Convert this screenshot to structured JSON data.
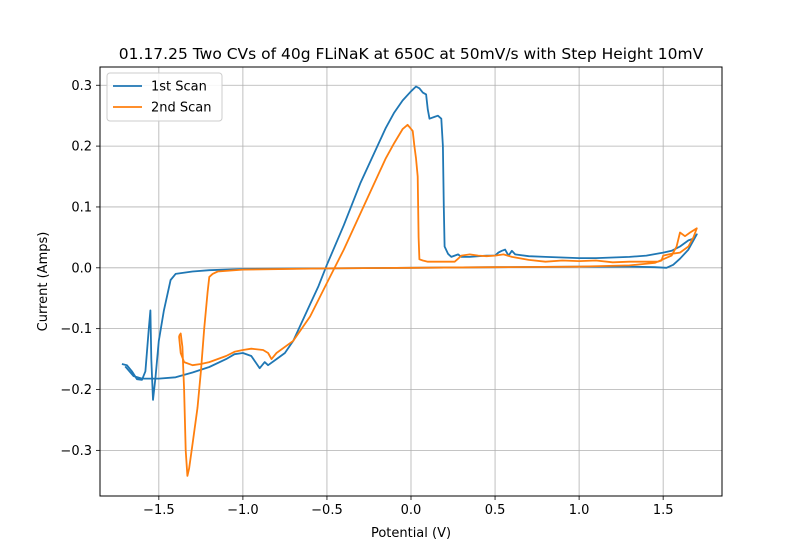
{
  "chart_data": {
    "type": "line",
    "title": "01.17.25 Two CVs of 40g FLiNaK at 650C at 50mV/s with Step Height 10mV",
    "xlabel": "Potential (V)",
    "ylabel": "Current (Amps)",
    "xlim": [
      -1.85,
      1.85
    ],
    "ylim": [
      -0.375,
      0.33
    ],
    "xticks": [
      -1.5,
      -1.0,
      -0.5,
      0.0,
      0.5,
      1.0,
      1.5
    ],
    "xtick_labels": [
      "−1.5",
      "−1.0",
      "−0.5",
      "0.0",
      "0.5",
      "1.0",
      "1.5"
    ],
    "yticks": [
      -0.3,
      -0.2,
      -0.1,
      0.0,
      0.1,
      0.2,
      0.3
    ],
    "ytick_labels": [
      "−0.3",
      "−0.2",
      "−0.1",
      "0.0",
      "0.1",
      "0.2",
      "0.3"
    ],
    "grid": true,
    "legend_position": "top-left",
    "series": [
      {
        "name": "1st Scan",
        "color": "#1f77b4",
        "points": [
          [
            -1.72,
            -0.158
          ],
          [
            -1.69,
            -0.16
          ],
          [
            -1.66,
            -0.17
          ],
          [
            -1.63,
            -0.183
          ],
          [
            -1.6,
            -0.184
          ],
          [
            -1.58,
            -0.17
          ],
          [
            -1.56,
            -0.1
          ],
          [
            -1.55,
            -0.07
          ],
          [
            -1.545,
            -0.15
          ],
          [
            -1.535,
            -0.217
          ],
          [
            -1.52,
            -0.18
          ],
          [
            -1.5,
            -0.12
          ],
          [
            -1.47,
            -0.07
          ],
          [
            -1.43,
            -0.02
          ],
          [
            -1.4,
            -0.01
          ],
          [
            -1.3,
            -0.006
          ],
          [
            -1.2,
            -0.004
          ],
          [
            -1.0,
            -0.002
          ],
          [
            -0.5,
            -0.001
          ],
          [
            0.0,
            0.0
          ],
          [
            0.5,
            0.001
          ],
          [
            1.0,
            0.002
          ],
          [
            1.3,
            0.002
          ],
          [
            1.45,
            0.001
          ],
          [
            1.52,
            0.0
          ],
          [
            1.56,
            0.005
          ],
          [
            1.6,
            0.015
          ],
          [
            1.65,
            0.03
          ],
          [
            1.7,
            0.055
          ],
          [
            1.68,
            0.048
          ],
          [
            1.65,
            0.045
          ],
          [
            1.6,
            0.035
          ],
          [
            1.55,
            0.028
          ],
          [
            1.5,
            0.025
          ],
          [
            1.4,
            0.02
          ],
          [
            1.3,
            0.018
          ],
          [
            1.2,
            0.017
          ],
          [
            1.1,
            0.016
          ],
          [
            1.0,
            0.016
          ],
          [
            0.9,
            0.017
          ],
          [
            0.8,
            0.018
          ],
          [
            0.7,
            0.019
          ],
          [
            0.62,
            0.022
          ],
          [
            0.6,
            0.028
          ],
          [
            0.58,
            0.02
          ],
          [
            0.56,
            0.03
          ],
          [
            0.54,
            0.028
          ],
          [
            0.52,
            0.025
          ],
          [
            0.5,
            0.02
          ],
          [
            0.45,
            0.02
          ],
          [
            0.4,
            0.019
          ],
          [
            0.35,
            0.018
          ],
          [
            0.3,
            0.018
          ],
          [
            0.28,
            0.022
          ],
          [
            0.26,
            0.02
          ],
          [
            0.24,
            0.018
          ],
          [
            0.22,
            0.023
          ],
          [
            0.2,
            0.035
          ],
          [
            0.195,
            0.1
          ],
          [
            0.19,
            0.2
          ],
          [
            0.18,
            0.245
          ],
          [
            0.16,
            0.25
          ],
          [
            0.14,
            0.248
          ],
          [
            0.11,
            0.245
          ],
          [
            0.1,
            0.26
          ],
          [
            0.09,
            0.285
          ],
          [
            0.07,
            0.288
          ],
          [
            0.05,
            0.295
          ],
          [
            0.03,
            0.298
          ],
          [
            0.0,
            0.29
          ],
          [
            -0.05,
            0.275
          ],
          [
            -0.1,
            0.255
          ],
          [
            -0.15,
            0.23
          ],
          [
            -0.2,
            0.2
          ],
          [
            -0.3,
            0.14
          ],
          [
            -0.4,
            0.07
          ],
          [
            -0.5,
            0.005
          ],
          [
            -0.55,
            -0.03
          ],
          [
            -0.6,
            -0.06
          ],
          [
            -0.7,
            -0.12
          ],
          [
            -0.75,
            -0.14
          ],
          [
            -0.8,
            -0.15
          ],
          [
            -0.85,
            -0.16
          ],
          [
            -0.87,
            -0.155
          ],
          [
            -0.9,
            -0.165
          ],
          [
            -0.95,
            -0.145
          ],
          [
            -1.0,
            -0.14
          ],
          [
            -1.05,
            -0.142
          ],
          [
            -1.1,
            -0.15
          ],
          [
            -1.2,
            -0.163
          ],
          [
            -1.3,
            -0.172
          ],
          [
            -1.4,
            -0.18
          ],
          [
            -1.5,
            -0.182
          ],
          [
            -1.6,
            -0.182
          ],
          [
            -1.65,
            -0.178
          ],
          [
            -1.7,
            -0.162
          ]
        ]
      },
      {
        "name": "2nd Scan",
        "color": "#ff7f0e",
        "points": [
          [
            -1.38,
            -0.112
          ],
          [
            -1.37,
            -0.108
          ],
          [
            -1.36,
            -0.13
          ],
          [
            -1.35,
            -0.2
          ],
          [
            -1.34,
            -0.3
          ],
          [
            -1.33,
            -0.342
          ],
          [
            -1.32,
            -0.33
          ],
          [
            -1.3,
            -0.29
          ],
          [
            -1.27,
            -0.23
          ],
          [
            -1.25,
            -0.17
          ],
          [
            -1.23,
            -0.1
          ],
          [
            -1.21,
            -0.04
          ],
          [
            -1.2,
            -0.015
          ],
          [
            -1.18,
            -0.01
          ],
          [
            -1.15,
            -0.006
          ],
          [
            -1.0,
            -0.003
          ],
          [
            -0.5,
            -0.001
          ],
          [
            0.0,
            0.0
          ],
          [
            0.5,
            0.001
          ],
          [
            1.0,
            0.002
          ],
          [
            1.3,
            0.004
          ],
          [
            1.45,
            0.008
          ],
          [
            1.55,
            0.02
          ],
          [
            1.58,
            0.035
          ],
          [
            1.6,
            0.058
          ],
          [
            1.63,
            0.052
          ],
          [
            1.66,
            0.058
          ],
          [
            1.7,
            0.065
          ],
          [
            1.68,
            0.05
          ],
          [
            1.65,
            0.035
          ],
          [
            1.6,
            0.025
          ],
          [
            1.55,
            0.023
          ],
          [
            1.5,
            0.02
          ],
          [
            1.49,
            0.012
          ],
          [
            1.47,
            0.01
          ],
          [
            1.4,
            0.01
          ],
          [
            1.3,
            0.01
          ],
          [
            1.2,
            0.009
          ],
          [
            1.1,
            0.012
          ],
          [
            1.0,
            0.011
          ],
          [
            0.9,
            0.012
          ],
          [
            0.8,
            0.01
          ],
          [
            0.7,
            0.013
          ],
          [
            0.6,
            0.018
          ],
          [
            0.55,
            0.022
          ],
          [
            0.5,
            0.02
          ],
          [
            0.45,
            0.019
          ],
          [
            0.4,
            0.02
          ],
          [
            0.35,
            0.022
          ],
          [
            0.3,
            0.02
          ],
          [
            0.28,
            0.015
          ],
          [
            0.26,
            0.01
          ],
          [
            0.1,
            0.01
          ],
          [
            0.07,
            0.012
          ],
          [
            0.05,
            0.014
          ],
          [
            0.045,
            0.05
          ],
          [
            0.04,
            0.15
          ],
          [
            0.03,
            0.18
          ],
          [
            0.02,
            0.2
          ],
          [
            0.01,
            0.225
          ],
          [
            -0.02,
            0.235
          ],
          [
            -0.05,
            0.228
          ],
          [
            -0.1,
            0.205
          ],
          [
            -0.15,
            0.18
          ],
          [
            -0.2,
            0.15
          ],
          [
            -0.3,
            0.09
          ],
          [
            -0.4,
            0.03
          ],
          [
            -0.5,
            -0.025
          ],
          [
            -0.6,
            -0.08
          ],
          [
            -0.7,
            -0.12
          ],
          [
            -0.8,
            -0.14
          ],
          [
            -0.83,
            -0.15
          ],
          [
            -0.85,
            -0.14
          ],
          [
            -0.88,
            -0.135
          ],
          [
            -0.95,
            -0.133
          ],
          [
            -1.0,
            -0.135
          ],
          [
            -1.05,
            -0.138
          ],
          [
            -1.1,
            -0.145
          ],
          [
            -1.2,
            -0.155
          ],
          [
            -1.25,
            -0.158
          ],
          [
            -1.3,
            -0.16
          ],
          [
            -1.35,
            -0.155
          ],
          [
            -1.37,
            -0.14
          ],
          [
            -1.38,
            -0.112
          ]
        ]
      }
    ]
  }
}
